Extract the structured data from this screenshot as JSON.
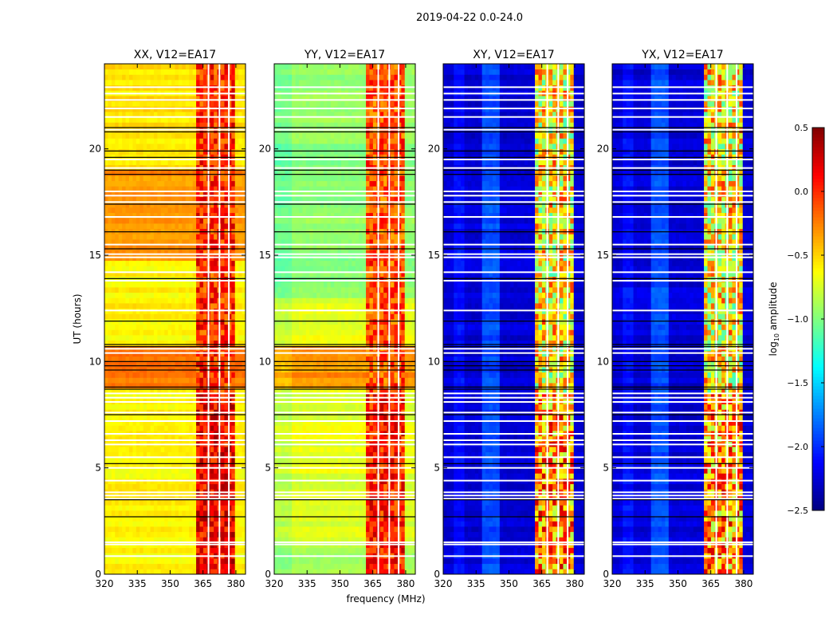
{
  "chart_data": {
    "type": "heatmap",
    "title": "2019-04-22 0.0-24.0",
    "xlabel": "frequency (MHz)",
    "ylabel": "UT (hours)",
    "xlim": [
      320,
      384.4
    ],
    "ylim": [
      0,
      24
    ],
    "xticks": [
      "320",
      "335",
      "350",
      "365",
      "380"
    ],
    "xtick_values": [
      320,
      335,
      350,
      365,
      380
    ],
    "yticks": [
      "0",
      "5",
      "10",
      "15",
      "20"
    ],
    "ytick_values": [
      0,
      5,
      10,
      15,
      20
    ],
    "colorbar": {
      "label_prefix": "log",
      "label_sub": "10",
      "label_suffix": " amplitude",
      "range": [
        -2.5,
        0.5
      ],
      "ticks": [
        "0.5",
        "0.0",
        "−0.5",
        "−1.0",
        "−1.5",
        "−2.0",
        "−2.5"
      ],
      "tick_values": [
        0.5,
        0.0,
        -0.5,
        -1.0,
        -1.5,
        -2.0,
        -2.5
      ],
      "colormap": "jet"
    },
    "rfi_band_mhz": [
      362,
      380
    ],
    "band_gaps_mhz": [
      367.5,
      372.5,
      376.8
    ],
    "flagged_hours": [
      0.85,
      1.4,
      1.5,
      3.55,
      3.7,
      3.85,
      4.4,
      5.0,
      5.5,
      6.1,
      6.3,
      6.6,
      7.2,
      7.6,
      8.1,
      8.3,
      8.5,
      10.4,
      10.6,
      12.4,
      13.8,
      14.2,
      14.9,
      15.05,
      15.5,
      16.8,
      17.5,
      17.8,
      18.0,
      19.1,
      19.5,
      20.9,
      21.5,
      21.9,
      22.3,
      22.6,
      22.9
    ],
    "boundary_hours": [
      2.7,
      3.5,
      5.2,
      7.5,
      8.7,
      8.8,
      9.6,
      9.8,
      10.0,
      10.7,
      10.8,
      11.9,
      13.9,
      15.3,
      16.1,
      17.4,
      18.8,
      19.0,
      19.6,
      19.9,
      20.8,
      21.0
    ],
    "panels": [
      {
        "title": "XX, V12=EA17",
        "base": -0.6,
        "band": 0.0,
        "segments": [
          {
            "from": 8.8,
            "to": 10.7,
            "value": -0.25
          },
          {
            "from": 14.8,
            "to": 19.0,
            "value": -0.3
          },
          {
            "from": 19.0,
            "to": 24,
            "value": -0.55
          }
        ]
      },
      {
        "title": "YY, V12=EA17",
        "base": -0.7,
        "band": -0.1,
        "segments": [
          {
            "from": 0,
            "to": 1.5,
            "value": -0.85
          },
          {
            "from": 8.8,
            "to": 10.7,
            "value": -0.3
          },
          {
            "from": 13.0,
            "to": 24,
            "value": -0.95
          }
        ]
      },
      {
        "title": "XY, V12=EA17",
        "base": -2.25,
        "band": -0.6,
        "segments": []
      },
      {
        "title": "YX, V12=EA17",
        "base": -2.25,
        "band": -0.6,
        "segments": []
      }
    ]
  }
}
